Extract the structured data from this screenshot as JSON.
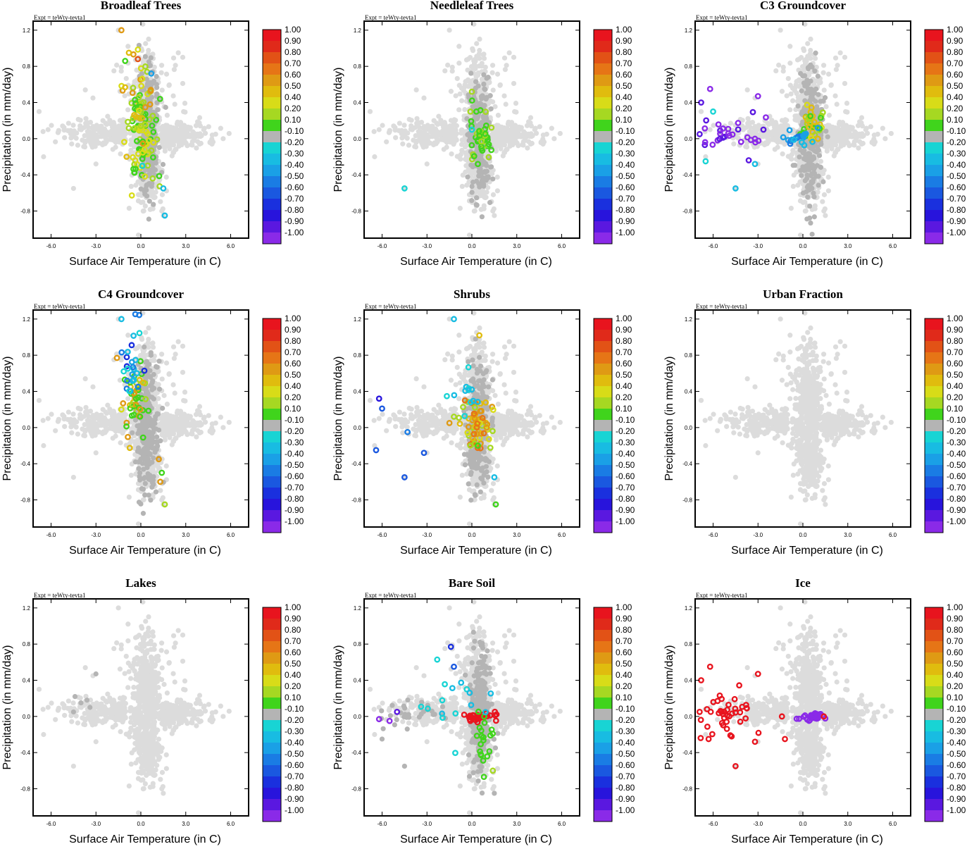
{
  "figure": {
    "experiment": "Expt = teWty-tevta1"
  },
  "chart_data": {
    "type": "scatter",
    "xlabel": "Surface Air Temperature (in C)",
    "ylabel": "Precipitation (in mm/day)",
    "xlim": [
      -7.2,
      7.2
    ],
    "ylim": [
      -1.1,
      1.3
    ],
    "xticks": [
      -6.0,
      -3.0,
      0.0,
      3.0,
      6.0
    ],
    "xtick_labels": [
      "-6.0",
      "-3.0",
      "0.0",
      "3.0",
      "6.0"
    ],
    "yticks": [
      -0.8,
      -0.4,
      0.0,
      0.4,
      0.8,
      1.2
    ],
    "ytick_labels": [
      "-0.8",
      "-0.4",
      "0.0",
      "0.4",
      "0.8",
      "1.2"
    ],
    "colorbar": {
      "labels": [
        "1.00",
        "0.90",
        "0.80",
        "0.70",
        "0.60",
        "0.50",
        "0.40",
        "0.20",
        "0.10",
        "-0.10",
        "-0.20",
        "-0.30",
        "-0.40",
        "-0.50",
        "-0.60",
        "-0.70",
        "-0.80",
        "-0.90",
        "-1.00"
      ],
      "colors": [
        "#e8141e",
        "#e02a1a",
        "#e25216",
        "#e67516",
        "#df9a14",
        "#e0bc0e",
        "#d8dc18",
        "#a6d822",
        "#40d41c",
        "#b4b4b4",
        "#18d4d4",
        "#18bce2",
        "#1aa0e6",
        "#1a7ce4",
        "#1a58e0",
        "#1a30de",
        "#2814dc",
        "#5a18e0",
        "#8a2ae8"
      ]
    },
    "panels": [
      {
        "title": "Broadleaf Trees",
        "highlight": "broadleaf"
      },
      {
        "title": "Needleleaf Trees",
        "highlight": "needleleaf"
      },
      {
        "title": "C3 Groundcover",
        "highlight": "c3"
      },
      {
        "title": "C4 Groundcover",
        "highlight": "c4"
      },
      {
        "title": "Shrubs",
        "highlight": "shrubs"
      },
      {
        "title": "Urban Fraction",
        "highlight": "none"
      },
      {
        "title": "Lakes",
        "highlight": "lakes"
      },
      {
        "title": "Bare Soil",
        "highlight": "baresoil"
      },
      {
        "title": "Ice",
        "highlight": "ice"
      }
    ],
    "background_points_note": "light grey cloud of ~1500 grid points (dT, dP); cross-shaped cluster"
  }
}
